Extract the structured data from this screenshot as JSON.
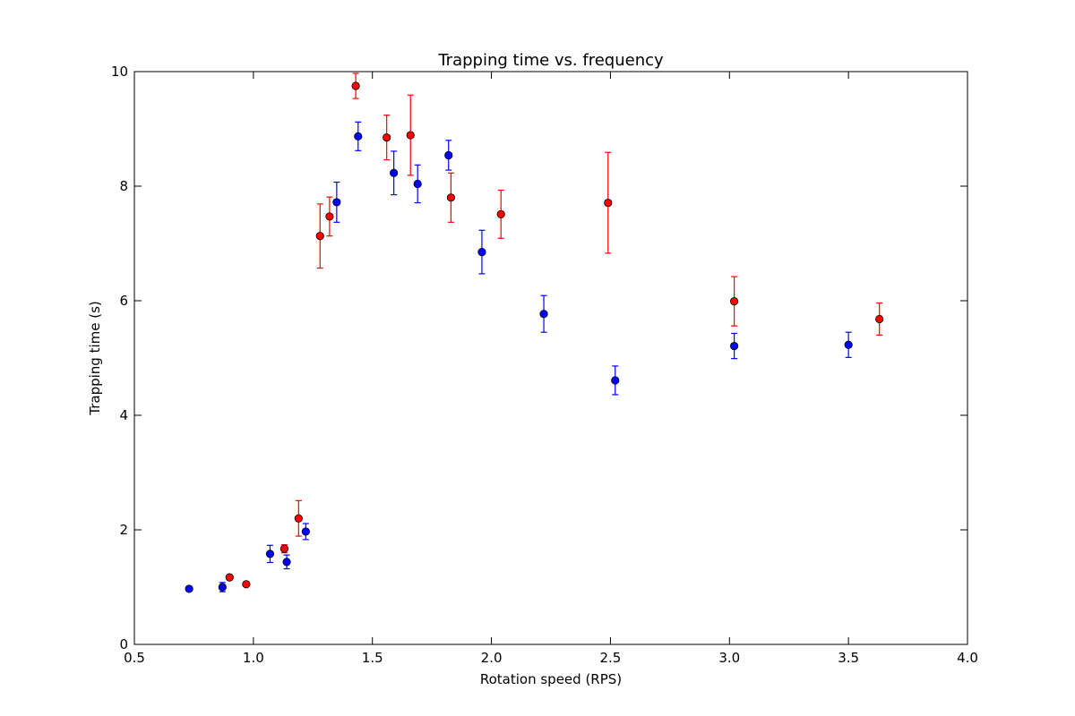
{
  "chart_data": {
    "type": "scatter",
    "title": "Trapping time vs. frequency",
    "xlabel": "Rotation speed (RPS)",
    "ylabel": "Trapping time (s)",
    "xlim": [
      0.5,
      4.0
    ],
    "ylim": [
      0,
      10
    ],
    "xticks": [
      "0.5",
      "1.0",
      "1.5",
      "2.0",
      "2.5",
      "3.0",
      "3.5",
      "4.0"
    ],
    "yticks": [
      "0",
      "2",
      "4",
      "6",
      "8",
      "10"
    ],
    "grid": false,
    "error_bars": true,
    "series": [
      {
        "color": "#0000ff",
        "points": [
          {
            "x": 0.73,
            "y": 0.97,
            "err": 0.0
          },
          {
            "x": 0.87,
            "y": 1.0,
            "err": 0.08
          },
          {
            "x": 1.07,
            "y": 1.58,
            "err": 0.15
          },
          {
            "x": 1.14,
            "y": 1.44,
            "err": 0.12
          },
          {
            "x": 1.22,
            "y": 1.97,
            "err": 0.14
          },
          {
            "x": 1.35,
            "y": 7.72,
            "err": 0.35
          },
          {
            "x": 1.44,
            "y": 8.87,
            "err": 0.25
          },
          {
            "x": 1.59,
            "y": 8.23,
            "err": 0.38
          },
          {
            "x": 1.69,
            "y": 8.04,
            "err": 0.33
          },
          {
            "x": 1.82,
            "y": 8.54,
            "err": 0.26
          },
          {
            "x": 1.96,
            "y": 6.85,
            "err": 0.38
          },
          {
            "x": 2.22,
            "y": 5.77,
            "err": 0.32
          },
          {
            "x": 2.52,
            "y": 4.61,
            "err": 0.25
          },
          {
            "x": 3.02,
            "y": 5.21,
            "err": 0.22
          },
          {
            "x": 3.5,
            "y": 5.23,
            "err": 0.22
          }
        ]
      },
      {
        "color": "#ff0000",
        "points": [
          {
            "x": 0.9,
            "y": 1.17,
            "err": 0.0
          },
          {
            "x": 0.97,
            "y": 1.05,
            "err": 0.0
          },
          {
            "x": 1.13,
            "y": 1.67,
            "err": 0.07
          },
          {
            "x": 1.19,
            "y": 2.2,
            "err": 0.31
          },
          {
            "x": 1.28,
            "y": 7.13,
            "err": 0.56
          },
          {
            "x": 1.32,
            "y": 7.47,
            "err": 0.34
          },
          {
            "x": 1.43,
            "y": 9.75,
            "err": 0.22
          },
          {
            "x": 1.56,
            "y": 8.85,
            "err": 0.39
          },
          {
            "x": 1.66,
            "y": 8.89,
            "err": 0.7
          },
          {
            "x": 1.83,
            "y": 7.8,
            "err": 0.43
          },
          {
            "x": 2.04,
            "y": 7.51,
            "err": 0.42
          },
          {
            "x": 2.49,
            "y": 7.71,
            "err": 0.88
          },
          {
            "x": 3.02,
            "y": 5.99,
            "err": 0.43
          },
          {
            "x": 3.63,
            "y": 5.68,
            "err": 0.28
          }
        ]
      }
    ]
  }
}
